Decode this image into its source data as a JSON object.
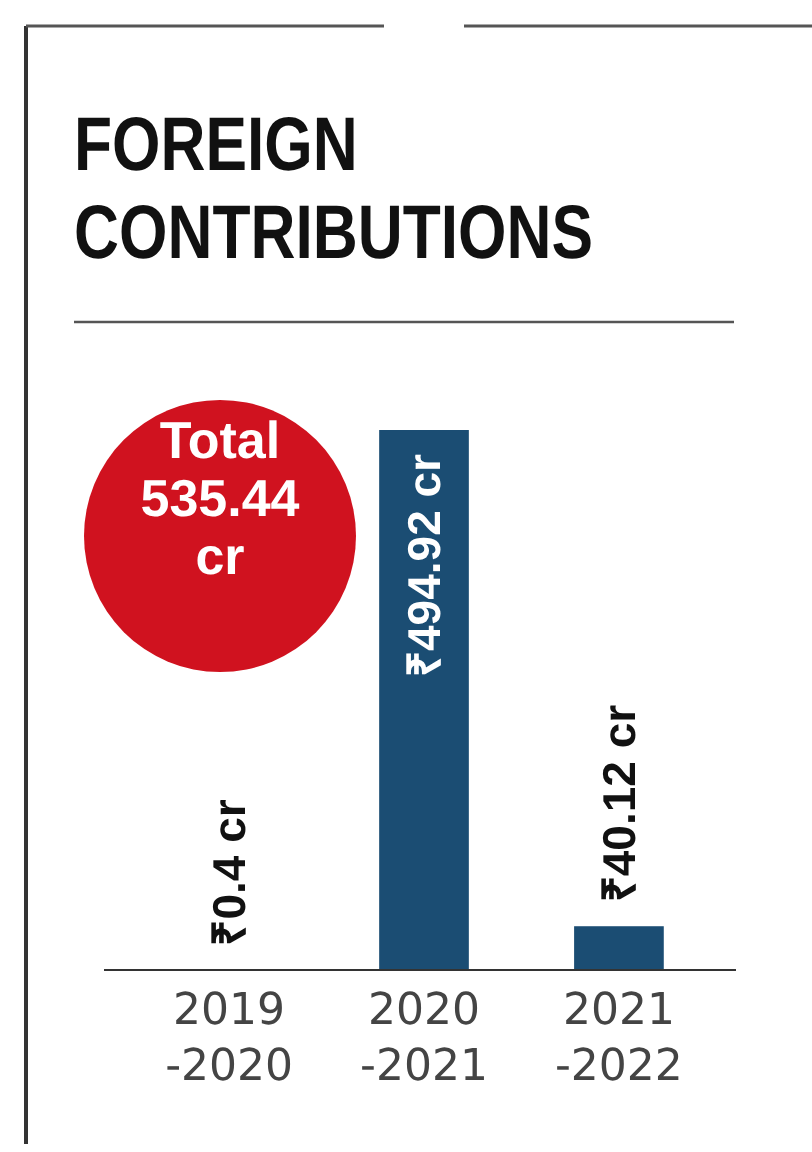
{
  "chart_data": {
    "type": "bar",
    "title": "FOREIGN\nCONTRIBUTIONS",
    "categories": [
      "2019\n-2020",
      "2020\n-2021",
      "2021\n-2022"
    ],
    "values": [
      0.4,
      494.92,
      40.12
    ],
    "color": "#1b4d73",
    "value_labels": [
      "₹0.4 cr",
      "₹494.92 cr",
      "₹40.12 cr"
    ],
    "annotations": [
      "Total\n535.44\ncr"
    ]
  }
}
